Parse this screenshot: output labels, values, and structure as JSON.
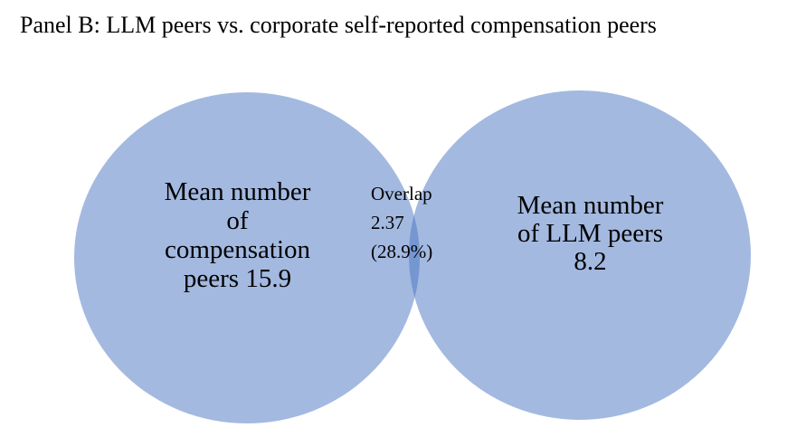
{
  "title": "Panel B: LLM peers vs. corporate self-reported compensation peers",
  "sets": {
    "left": {
      "lines": [
        "Mean number",
        "of",
        "compensation",
        "peers 15.9"
      ],
      "value": 15.9,
      "color": "#a3b9e0"
    },
    "right": {
      "lines": [
        "Mean number",
        "of LLM peers",
        "8.2"
      ],
      "value": 8.2,
      "color": "#a3b9e0"
    },
    "overlap": {
      "lines": [
        "Overlap",
        "2.37",
        "(28.9%)"
      ],
      "value": 2.37,
      "percent": 28.9,
      "color": "#7597d1"
    }
  }
}
